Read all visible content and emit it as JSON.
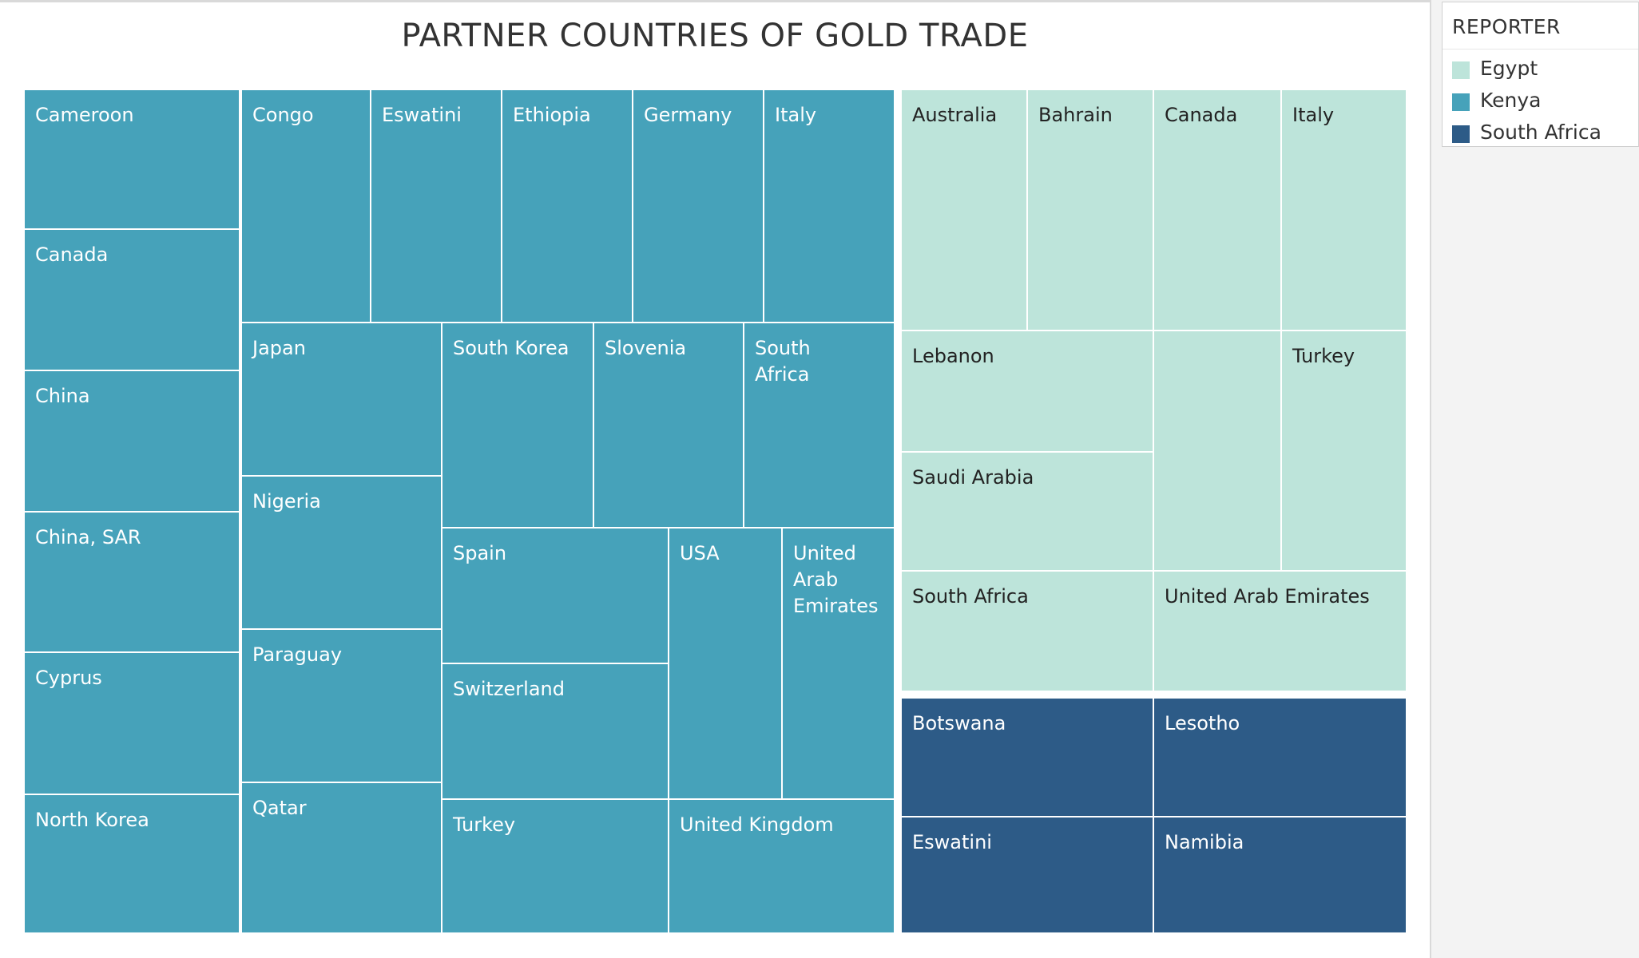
{
  "chart_data": {
    "type": "treemap",
    "title": "PARTNER COUNTRIES OF GOLD TRADE",
    "legend": {
      "title": "REPORTER",
      "position": "top-right",
      "entries": [
        {
          "name": "Egypt",
          "color": "#bde4da"
        },
        {
          "name": "Kenya",
          "color": "#46a2ba"
        },
        {
          "name": "South Africa",
          "color": "#2d5b87"
        }
      ]
    },
    "groups": [
      {
        "reporter": "Kenya",
        "color": "#46a2ba",
        "text_color": "#ffffff",
        "partners": [
          "Cameroon",
          "Canada",
          "China",
          "China, SAR",
          "Cyprus",
          "North Korea",
          "Congo",
          "Eswatini",
          "Ethiopia",
          "Germany",
          "Italy",
          "Japan",
          "Nigeria",
          "Paraguay",
          "Qatar",
          "South Korea",
          "Slovenia",
          "South Africa",
          "Spain",
          "Switzerland",
          "Turkey",
          "USA",
          "United Arab Emirates",
          "United Kingdom"
        ]
      },
      {
        "reporter": "Egypt",
        "color": "#bde4da",
        "text_color": "#222222",
        "partners": [
          "Australia",
          "Bahrain",
          "Canada",
          "Italy",
          "Lebanon",
          "Saudi Arabia",
          "South Africa",
          "",
          "Turkey",
          "United Arab Emirates"
        ]
      },
      {
        "reporter": "South Africa",
        "color": "#2d5b87",
        "text_color": "#ffffff",
        "partners": [
          "Botswana",
          "Lesotho",
          "Eswatini",
          "Namibia"
        ]
      }
    ]
  }
}
